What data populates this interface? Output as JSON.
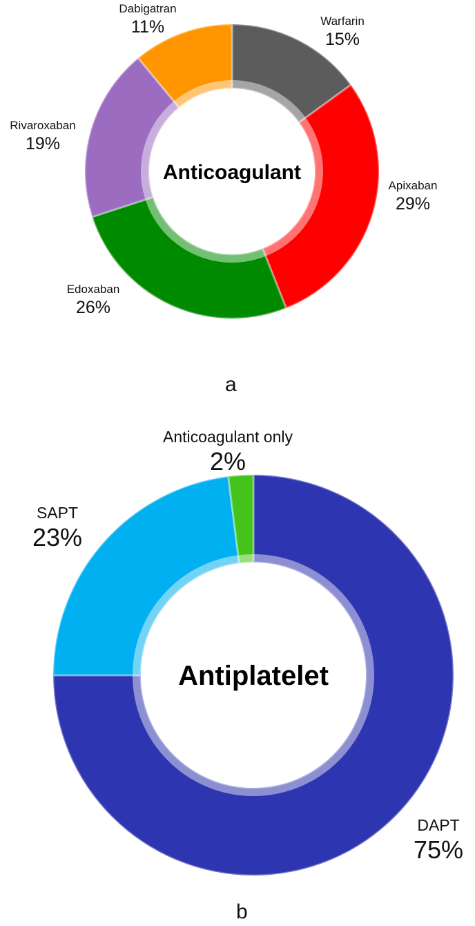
{
  "chart_data": [
    {
      "type": "pie",
      "donut": true,
      "panel_label": "a",
      "center_label": "Anticoagulant",
      "start_angle_deg": 0,
      "direction": "clockwise",
      "slices": [
        {
          "label": "Warfarin",
          "percent": "15%",
          "value": 15,
          "color": "#5c5c5c"
        },
        {
          "label": "Apixaban",
          "percent": "29%",
          "value": 29,
          "color": "#ff0000"
        },
        {
          "label": "Edoxaban",
          "percent": "26%",
          "value": 26,
          "color": "#008a00"
        },
        {
          "label": "Rivaroxaban",
          "percent": "19%",
          "value": 19,
          "color": "#9b6cbf"
        },
        {
          "label": "Dabigatran",
          "percent": "11%",
          "value": 11,
          "color": "#ff9500"
        }
      ]
    },
    {
      "type": "pie",
      "donut": true,
      "panel_label": "b",
      "center_label": "Antiplatelet",
      "start_angle_deg": 0,
      "direction": "clockwise",
      "slices": [
        {
          "label": "DAPT",
          "percent": "75%",
          "value": 75,
          "color": "#2e35b0"
        },
        {
          "label": "SAPT",
          "percent": "23%",
          "value": 23,
          "color": "#00b0f0"
        },
        {
          "label": "Anticoagulant only",
          "percent": "2%",
          "value": 2,
          "color": "#44c41a"
        }
      ]
    }
  ]
}
